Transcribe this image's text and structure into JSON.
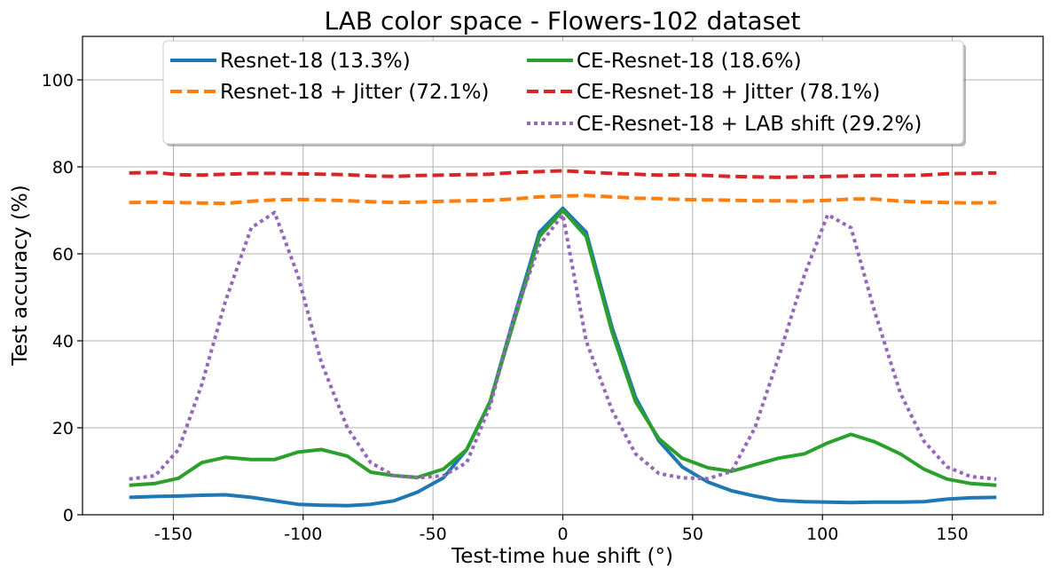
{
  "chart_data": {
    "type": "line",
    "title": "LAB color space - Flowers-102 dataset",
    "xlabel": "Test-time hue shift (°)",
    "ylabel": "Test accuracy (%)",
    "xlim": [
      -185,
      185
    ],
    "ylim": [
      0,
      110
    ],
    "xticks": [
      -150,
      -100,
      -50,
      0,
      50,
      100,
      150
    ],
    "yticks": [
      0,
      20,
      40,
      60,
      80,
      100
    ],
    "grid": true,
    "legend_position": "top",
    "x": [
      -167,
      -157,
      -148,
      -139,
      -130,
      -120,
      -111,
      -102,
      -93,
      -83,
      -74,
      -65,
      -56,
      -46,
      -37,
      -28,
      -19,
      -9,
      0,
      9,
      19,
      28,
      37,
      46,
      56,
      65,
      74,
      83,
      93,
      102,
      111,
      120,
      130,
      139,
      148,
      157,
      167
    ],
    "series": [
      {
        "name": "Resnet-18 (13.3%)",
        "color": "#1f77b4",
        "style": "solid",
        "values": [
          4.0,
          4.2,
          4.3,
          4.5,
          4.6,
          4.0,
          3.2,
          2.4,
          2.2,
          2.1,
          2.4,
          3.2,
          5.2,
          8.5,
          15.0,
          26.0,
          45.0,
          65.0,
          70.5,
          65.0,
          43.0,
          27.0,
          17.0,
          11.0,
          7.5,
          5.5,
          4.3,
          3.3,
          3.0,
          2.9,
          2.8,
          2.9,
          2.9,
          3.0,
          3.6,
          3.9,
          4.0
        ]
      },
      {
        "name": "Resnet-18 + Jitter (72.1%)",
        "color": "#ff7f0e",
        "style": "dashed",
        "values": [
          71.8,
          71.9,
          71.8,
          71.7,
          71.6,
          72.1,
          72.4,
          72.5,
          72.4,
          72.2,
          72.0,
          71.8,
          71.9,
          72.1,
          72.2,
          72.3,
          72.6,
          73.1,
          73.3,
          73.4,
          73.1,
          72.8,
          72.7,
          72.5,
          72.4,
          72.3,
          72.2,
          72.2,
          72.1,
          72.3,
          72.6,
          72.6,
          72.1,
          71.9,
          71.8,
          71.7,
          71.8
        ]
      },
      {
        "name": "CE-Resnet-18 (18.6%)",
        "color": "#2ca02c",
        "style": "solid",
        "values": [
          6.8,
          7.2,
          8.4,
          12.0,
          13.2,
          12.7,
          12.7,
          14.4,
          15.0,
          13.5,
          9.8,
          9.0,
          8.6,
          10.5,
          15.0,
          26.0,
          44.0,
          64.0,
          70.0,
          64.0,
          42.0,
          26.0,
          17.5,
          13.0,
          10.8,
          10.0,
          11.5,
          13.0,
          14.0,
          16.5,
          18.5,
          16.8,
          14.0,
          10.5,
          8.2,
          7.2,
          6.8
        ]
      },
      {
        "name": "CE-Resnet-18 + Jitter (78.1%)",
        "color": "#d62728",
        "style": "dashed",
        "values": [
          78.6,
          78.7,
          78.2,
          78.1,
          78.3,
          78.5,
          78.5,
          78.4,
          78.3,
          78.2,
          77.9,
          77.8,
          78.0,
          78.1,
          78.2,
          78.3,
          78.7,
          78.9,
          79.1,
          78.8,
          78.5,
          78.3,
          78.1,
          78.2,
          78.0,
          77.8,
          77.7,
          77.6,
          77.7,
          77.8,
          77.9,
          78.0,
          78.0,
          78.1,
          78.4,
          78.5,
          78.6
        ]
      },
      {
        "name": "CE-Resnet-18 + LAB shift (29.2%)",
        "color": "#9467bd",
        "style": "dotted",
        "values": [
          8.2,
          9.0,
          15.0,
          30.0,
          49.0,
          66.0,
          69.5,
          55.0,
          35.0,
          20.0,
          12.0,
          9.0,
          8.5,
          9.0,
          12.0,
          25.0,
          45.0,
          62.0,
          69.0,
          40.0,
          24.0,
          14.0,
          9.5,
          8.5,
          8.3,
          10.0,
          20.0,
          36.0,
          55.0,
          69.0,
          66.0,
          47.0,
          28.0,
          17.0,
          11.0,
          8.8,
          8.2
        ]
      }
    ]
  }
}
